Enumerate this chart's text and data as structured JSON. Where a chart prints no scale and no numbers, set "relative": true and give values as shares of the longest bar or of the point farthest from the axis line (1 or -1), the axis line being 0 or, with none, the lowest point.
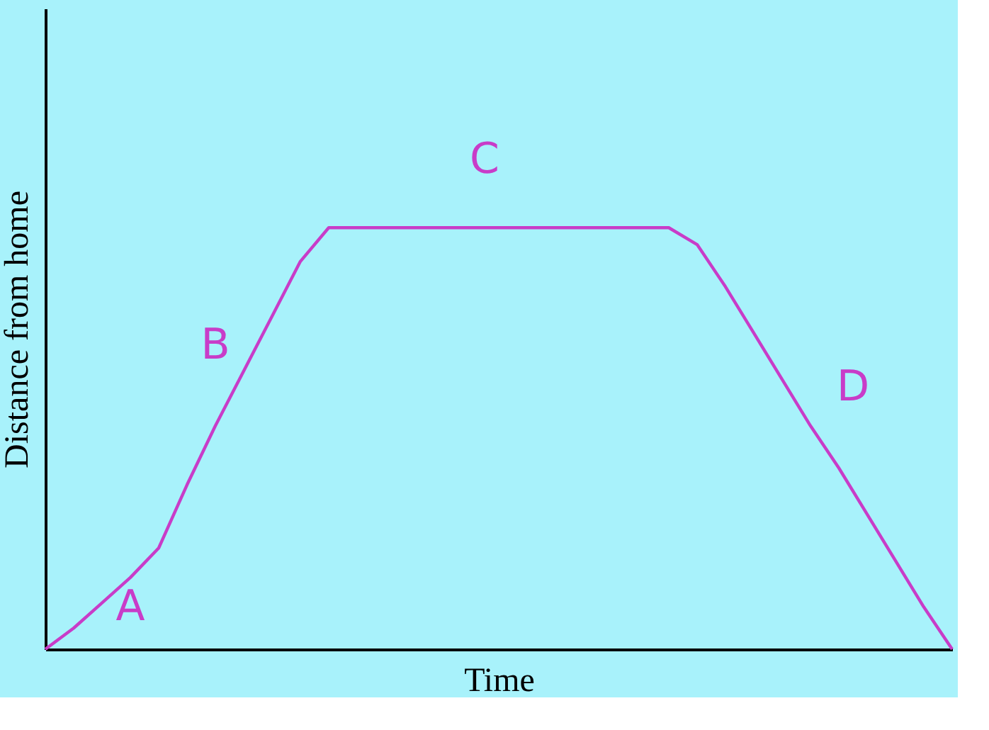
{
  "chart_data": {
    "type": "line",
    "relative": true,
    "xlabel": "Time",
    "ylabel": "Distance from home",
    "tick_labels": false,
    "grid": false,
    "marker": "none",
    "line_style": "solid",
    "categories": [
      null,
      null,
      null,
      null,
      null,
      null,
      null,
      null,
      null,
      null,
      null,
      null,
      null,
      null,
      null,
      null,
      null,
      null,
      null,
      null,
      null,
      null,
      null,
      null,
      null,
      null,
      null,
      null,
      null,
      null,
      null,
      null,
      null
    ],
    "series": [
      {
        "color": "#c83cc8",
        "values": [
          0,
          0.05,
          0.11,
          0.17,
          0.24,
          0.39,
          0.53,
          0.66,
          0.79,
          0.92,
          1,
          1,
          1,
          1,
          1,
          1,
          1,
          1,
          1,
          1,
          1,
          1,
          1,
          0.96,
          0.86,
          0.75,
          0.64,
          0.53,
          0.43,
          0.32,
          0.21,
          0.1,
          0
        ]
      }
    ],
    "annotations": [
      "A",
      "B",
      "C",
      "D"
    ]
  }
}
